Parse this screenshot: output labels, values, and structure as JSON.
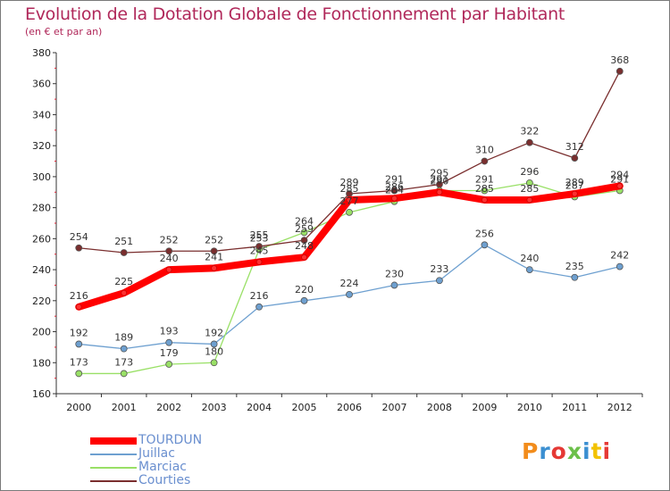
{
  "header": {
    "title": "Evolution de la Dotation Globale de Fonctionnement par Habitant",
    "subtitle": "(en € et par an)"
  },
  "logo": {
    "text": "Proxiti",
    "colors": [
      "#f28c1b",
      "#3b8fd1",
      "#e53935",
      "#6cc04a",
      "#3b8fd1",
      "#f2c200",
      "#e53935"
    ]
  },
  "chart_data": {
    "type": "line",
    "x": [
      "2000",
      "2001",
      "2002",
      "2003",
      "2004",
      "2005",
      "2006",
      "2007",
      "2008",
      "2009",
      "2010",
      "2011",
      "2012"
    ],
    "ylim": [
      160,
      380
    ],
    "yticks": [
      160,
      180,
      200,
      220,
      240,
      260,
      280,
      300,
      320,
      340,
      360,
      380
    ],
    "grid": false,
    "legend_position": "bottom-left",
    "series": [
      {
        "name": "TOURDUN",
        "color": "#ff0000",
        "values": [
          216,
          225,
          240,
          241,
          245,
          248,
          285,
          286,
          290,
          285,
          285,
          289,
          294
        ],
        "labels": [
          "216",
          "225",
          "240",
          "241",
          "245",
          "248",
          "285",
          "286",
          "290",
          "285",
          "285",
          "289",
          "294"
        ]
      },
      {
        "name": "Juillac",
        "color": "#6ea0d0",
        "values": [
          192,
          189,
          193,
          192,
          216,
          220,
          224,
          230,
          233,
          256,
          240,
          235,
          242
        ],
        "labels": [
          "192",
          "189",
          "193",
          "192",
          "216",
          "220",
          "224",
          "230",
          "233",
          "256",
          "240",
          "235",
          "242"
        ]
      },
      {
        "name": "Marciac",
        "color": "#99e066",
        "values": [
          173,
          173,
          179,
          180,
          253,
          264,
          277,
          284,
          291,
          291,
          296,
          287,
          291
        ],
        "labels": [
          "173",
          "173",
          "179",
          "180",
          "253",
          "264",
          "277",
          "284",
          "291",
          "291",
          "296",
          "287",
          "291"
        ]
      },
      {
        "name": "Courties",
        "color": "#7a2e2e",
        "values": [
          254,
          251,
          252,
          252,
          255,
          259,
          289,
          291,
          295,
          310,
          322,
          312,
          368
        ],
        "labels": [
          "254",
          "251",
          "252",
          "252",
          "255",
          "259",
          "289",
          "291",
          "295",
          "310",
          "322",
          "312",
          "368"
        ]
      }
    ]
  }
}
